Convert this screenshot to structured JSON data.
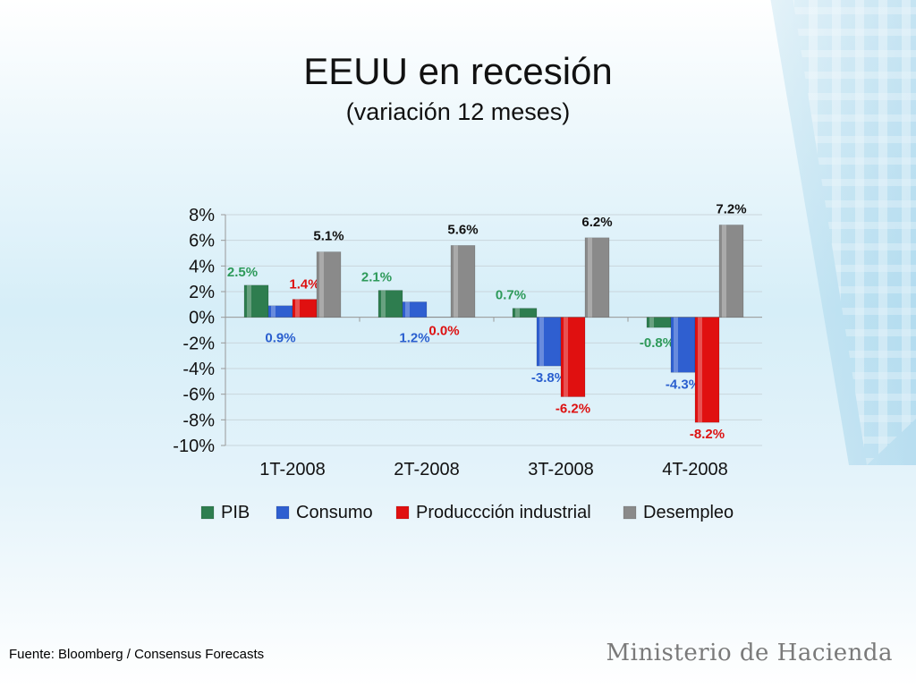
{
  "header": {
    "title": "EEUU en recesión",
    "subtitle": "(variación 12 meses)"
  },
  "footer": {
    "source": "Fuente: Bloomberg / Consensus Forecasts",
    "brand": "Ministerio de Hacienda"
  },
  "chart_data": {
    "type": "bar",
    "title": "EEUU en recesión",
    "subtitle": "(variación 12 meses)",
    "categories": [
      "1T-2008",
      "2T-2008",
      "3T-2008",
      "4T-2008"
    ],
    "series": [
      {
        "name": "PIB",
        "values": [
          2.5,
          2.1,
          0.7,
          -0.8
        ],
        "labels": [
          "2.5%",
          "2.1%",
          "0.7%",
          "-0.8%"
        ],
        "color": "#2e7d4f",
        "label_color": "#2e9a5a"
      },
      {
        "name": "Consumo",
        "values": [
          0.9,
          1.2,
          -3.8,
          -4.3
        ],
        "labels": [
          "0.9%",
          "1.2%",
          "-3.8%",
          "-4.3%"
        ],
        "color": "#2f5fd0",
        "label_color": "#2a5fcf"
      },
      {
        "name": "Produccción industrial",
        "values": [
          1.4,
          0.0,
          -6.2,
          -8.2
        ],
        "labels": [
          "1.4%",
          "0.0%",
          "-6.2%",
          "-8.2%"
        ],
        "color": "#e01010",
        "label_color": "#dd1111"
      },
      {
        "name": "Desempleo",
        "values": [
          5.1,
          5.6,
          6.2,
          7.2
        ],
        "labels": [
          "5.1%",
          "5.6%",
          "6.2%",
          "7.2%"
        ],
        "color": "#8a8a8a",
        "label_color": "#111111"
      }
    ],
    "yticks": [
      "8%",
      "6%",
      "4%",
      "2%",
      "0%",
      "-2%",
      "-4%",
      "-6%",
      "-8%",
      "-10%"
    ],
    "ylim": [
      -10,
      8
    ],
    "xlabel": "",
    "ylabel": "",
    "grid": true,
    "legend_position": "bottom"
  }
}
